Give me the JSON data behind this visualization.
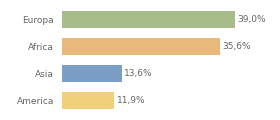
{
  "categories": [
    "Europa",
    "Africa",
    "Asia",
    "America"
  ],
  "values": [
    39.0,
    35.6,
    13.6,
    11.9
  ],
  "labels": [
    "39,0%",
    "35,6%",
    "13,6%",
    "11,9%"
  ],
  "bar_colors": [
    "#a8bc8a",
    "#e8b97a",
    "#7b9fc4",
    "#f0d07a"
  ],
  "background_color": "#ffffff",
  "xlim": [
    0,
    46
  ],
  "bar_height": 0.65,
  "label_fontsize": 6.5,
  "tick_fontsize": 6.5,
  "label_color": "#666666",
  "tick_color": "#666666"
}
